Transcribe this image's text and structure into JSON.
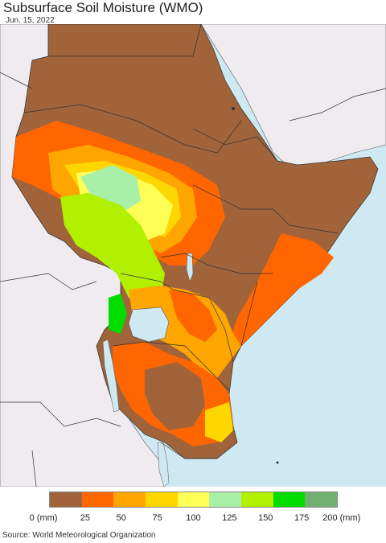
{
  "title": "Subsurface Soil Moisture (WMO)",
  "date": "Jun. 15, 2022",
  "source": "Source: World Meteorological Organization",
  "legend": {
    "ticks": [
      "0 (mm)",
      "25",
      "50",
      "75",
      "100",
      "125",
      "150",
      "175",
      "200 (mm)"
    ],
    "colors": [
      "#a0633a",
      "#ff6600",
      "#ffa500",
      "#ffd700",
      "#ffff55",
      "#a8f0a8",
      "#b0f000",
      "#00dd00",
      "#70b070"
    ]
  },
  "colors": {
    "ocean": "#cfe9f3",
    "land_nodata": "#efebef",
    "border": "#333333"
  }
}
